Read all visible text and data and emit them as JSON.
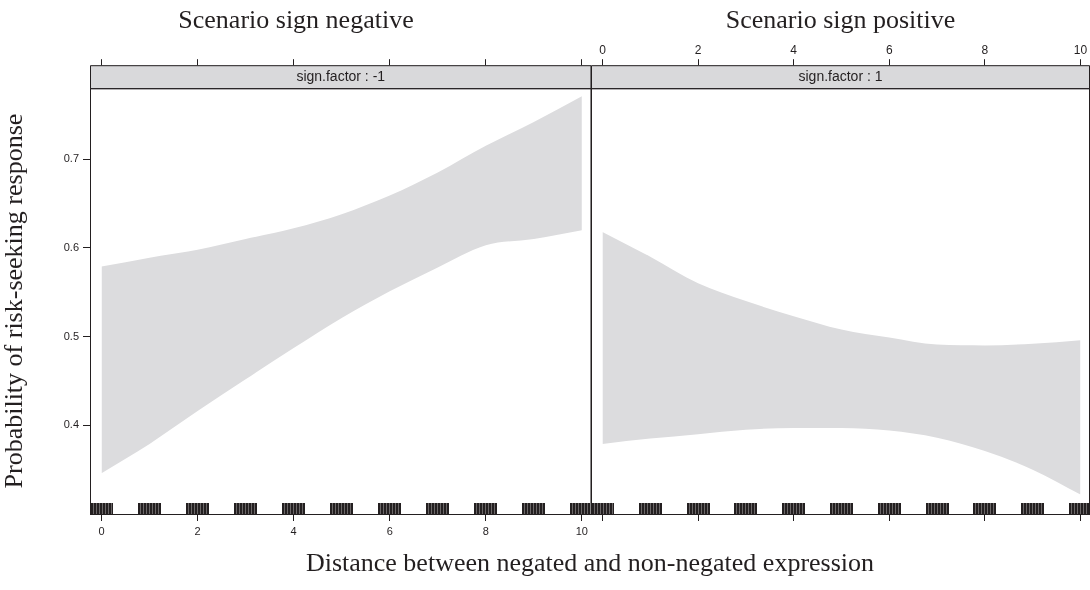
{
  "chart_data": [
    {
      "type": "area",
      "title": "Scenario sign negative",
      "subtitle": "sign.factor : -1",
      "xlabel": "Distance between negated and non-negated expression",
      "ylabel": "Probability of risk-seeking response",
      "x": [
        0,
        1,
        2,
        3,
        4,
        5,
        6,
        7,
        8,
        9,
        10
      ],
      "series": [
        {
          "color": "#dcdcde",
          "values": [
            null,
            null,
            null,
            null,
            null,
            null,
            null,
            null,
            null,
            null,
            null
          ],
          "lower": [
            0.346,
            0.379,
            0.416,
            0.452,
            0.487,
            0.521,
            0.551,
            0.578,
            0.603,
            0.61,
            0.62
          ],
          "upper": [
            0.579,
            0.589,
            0.598,
            0.61,
            0.622,
            0.638,
            0.659,
            0.685,
            0.715,
            0.742,
            0.771
          ]
        }
      ],
      "xlim": [
        -0.24,
        10.2
      ],
      "xticks": [
        0,
        2,
        4,
        6,
        8,
        10
      ],
      "ylim": [
        0.3,
        0.78
      ],
      "yticks": [
        0.4,
        0.5,
        0.6,
        0.7
      ]
    },
    {
      "type": "area",
      "title": "Scenario sign positive",
      "subtitle": "sign.factor : 1",
      "x": [
        0,
        1,
        2,
        3,
        4,
        5,
        6,
        7,
        8,
        9,
        10
      ],
      "series": [
        {
          "color": "#dcdcde",
          "values": [
            null,
            null,
            null,
            null,
            null,
            null,
            null,
            null,
            null,
            null,
            null
          ],
          "lower": [
            0.379,
            0.385,
            0.39,
            0.395,
            0.397,
            0.397,
            0.394,
            0.386,
            0.371,
            0.35,
            0.322
          ],
          "upper": [
            0.618,
            0.59,
            0.56,
            0.54,
            0.523,
            0.508,
            0.499,
            0.491,
            0.49,
            0.492,
            0.496
          ]
        }
      ],
      "xlim": [
        -0.24,
        10.2
      ],
      "xticks": [
        0,
        2,
        4,
        6,
        8,
        10
      ],
      "ylim": [
        0.3,
        0.78
      ],
      "tick_labels": "x"
    }
  ]
}
